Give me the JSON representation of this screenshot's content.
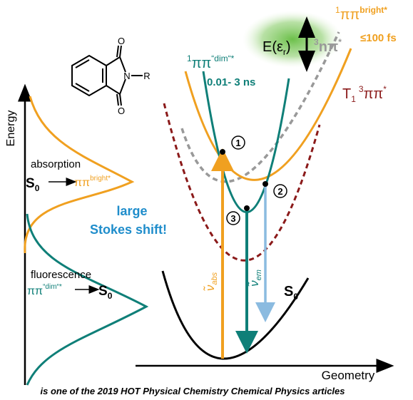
{
  "axes": {
    "y_label": "Energy",
    "x_label": "Geometry"
  },
  "left_panel": {
    "absorption": {
      "label": "absorption",
      "from": {
        "main": "S",
        "sub": "0"
      },
      "to": {
        "main": "ππ",
        "sup": "bright*"
      }
    },
    "stokes": [
      "large",
      "Stokes shift!"
    ],
    "fluorescence": {
      "label": "fluorescence",
      "from": {
        "main": "ππ",
        "sup": "“dim“*"
      },
      "to": {
        "main": "S",
        "sub": "0"
      }
    }
  },
  "states": {
    "dim": {
      "pre": "1",
      "main": "ππ",
      "sup": "“dim“*",
      "lifetime": "0.01- 3 ns"
    },
    "bright": {
      "pre": "1",
      "main": "ππ",
      "sup": "bright*",
      "lifetime": "≤100 fs"
    },
    "npi": {
      "pre": "3",
      "main": "nπ",
      "sup": "*"
    },
    "triplet": {
      "main": "T",
      "sub": "1",
      "pre": "3",
      "main2": "ππ",
      "sup": "*"
    },
    "ground": {
      "main": "S",
      "sub": "0"
    }
  },
  "energy_gap": {
    "main": "E(ε",
    "sub": "r",
    "end": ")"
  },
  "transitions": {
    "abs": {
      "main": "ν̃",
      "sub": "abs"
    },
    "em": {
      "main": "ν̃",
      "sub": "em"
    }
  },
  "points": [
    "1",
    "2",
    "3"
  ],
  "molecule": {
    "atoms": [
      "O",
      "N",
      "R",
      "O"
    ]
  },
  "footer": "is one of the 2019 HOT Physical Chemistry Chemical Physics articles"
}
